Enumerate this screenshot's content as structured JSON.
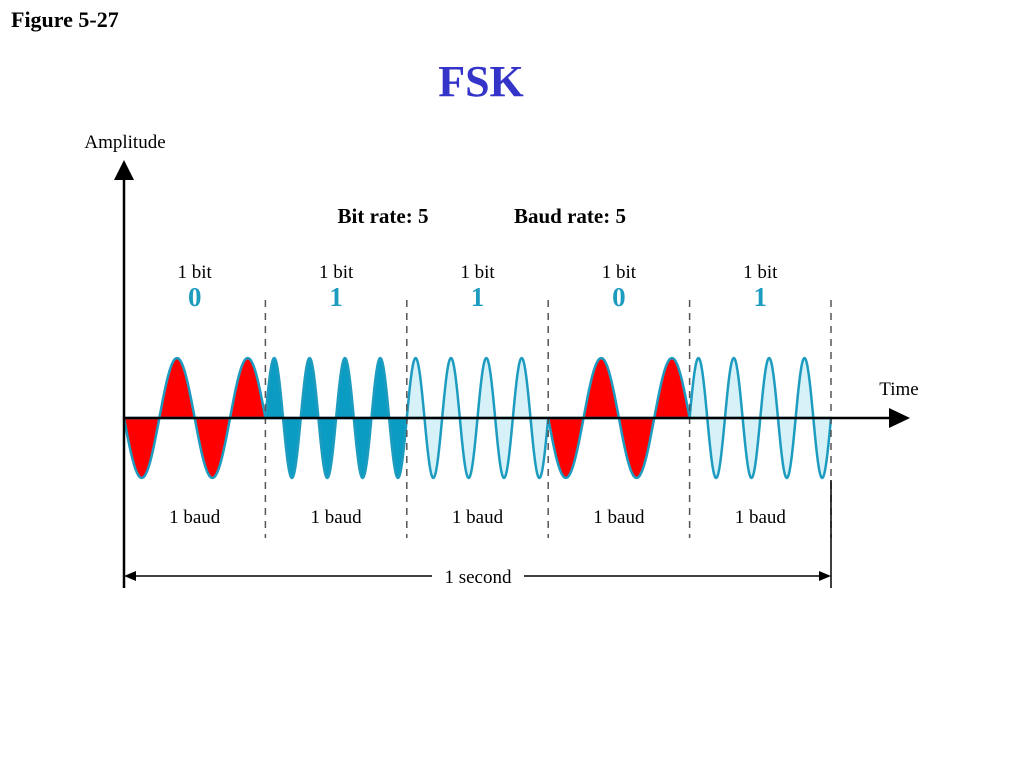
{
  "figure_label": "Figure 5-27",
  "title": "FSK",
  "colors": {
    "title": "#3434c8",
    "bit_digit": "#1d9cc0",
    "bit0_fill": "#ff0000",
    "bit1_fill_dark": "#0a9cc2",
    "bit1_fill_light": "#d6f1f8",
    "wave_stroke": "#1d9cc0",
    "axis": "#000000",
    "divider": "#555555"
  },
  "axes": {
    "y_label": "Amplitude",
    "x_label": "Time"
  },
  "rates": {
    "bit_rate": "Bit rate: 5",
    "baud_rate": "Baud rate: 5"
  },
  "segments": [
    {
      "bit_label": "1 bit",
      "bit": "0",
      "baud_label": "1 baud",
      "cycles": 2,
      "style": "bit0"
    },
    {
      "bit_label": "1 bit",
      "bit": "1",
      "baud_label": "1 baud",
      "cycles": 4,
      "style": "bit1-dark"
    },
    {
      "bit_label": "1 bit",
      "bit": "1",
      "baud_label": "1 baud",
      "cycles": 4,
      "style": "bit1-light"
    },
    {
      "bit_label": "1 bit",
      "bit": "0",
      "baud_label": "1 baud",
      "cycles": 2,
      "style": "bit0"
    },
    {
      "bit_label": "1 bit",
      "bit": "1",
      "baud_label": "1 baud",
      "cycles": 4,
      "style": "bit1-light"
    }
  ],
  "duration_label": "1 second"
}
